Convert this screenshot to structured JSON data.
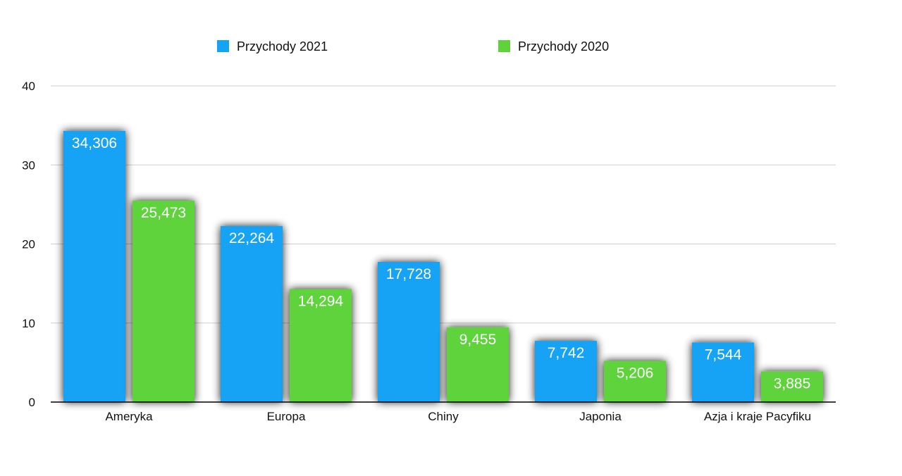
{
  "chart_data": {
    "type": "bar",
    "categories": [
      "Ameryka",
      "Europa",
      "Chiny",
      "Japonia",
      "Azja i kraje Pacyfiku"
    ],
    "series": [
      {
        "name": "Przychody 2021",
        "color": "#14a3f5",
        "values": [
          34.306,
          22.264,
          17.728,
          7.742,
          7.544
        ],
        "labels": [
          "34,306",
          "22,264",
          "17,728",
          "7,742",
          "7,544"
        ]
      },
      {
        "name": "Przychody 2020",
        "color": "#5fd33a",
        "values": [
          25.473,
          14.294,
          9.455,
          5.206,
          3.885
        ],
        "labels": [
          "25,473",
          "14,294",
          "9,455",
          "5,206",
          "3,885"
        ]
      }
    ],
    "yticks": [
      "0",
      "10",
      "20",
      "30",
      "40"
    ],
    "ylim": [
      0,
      40
    ],
    "grid": true,
    "legend_position": "top-center"
  }
}
